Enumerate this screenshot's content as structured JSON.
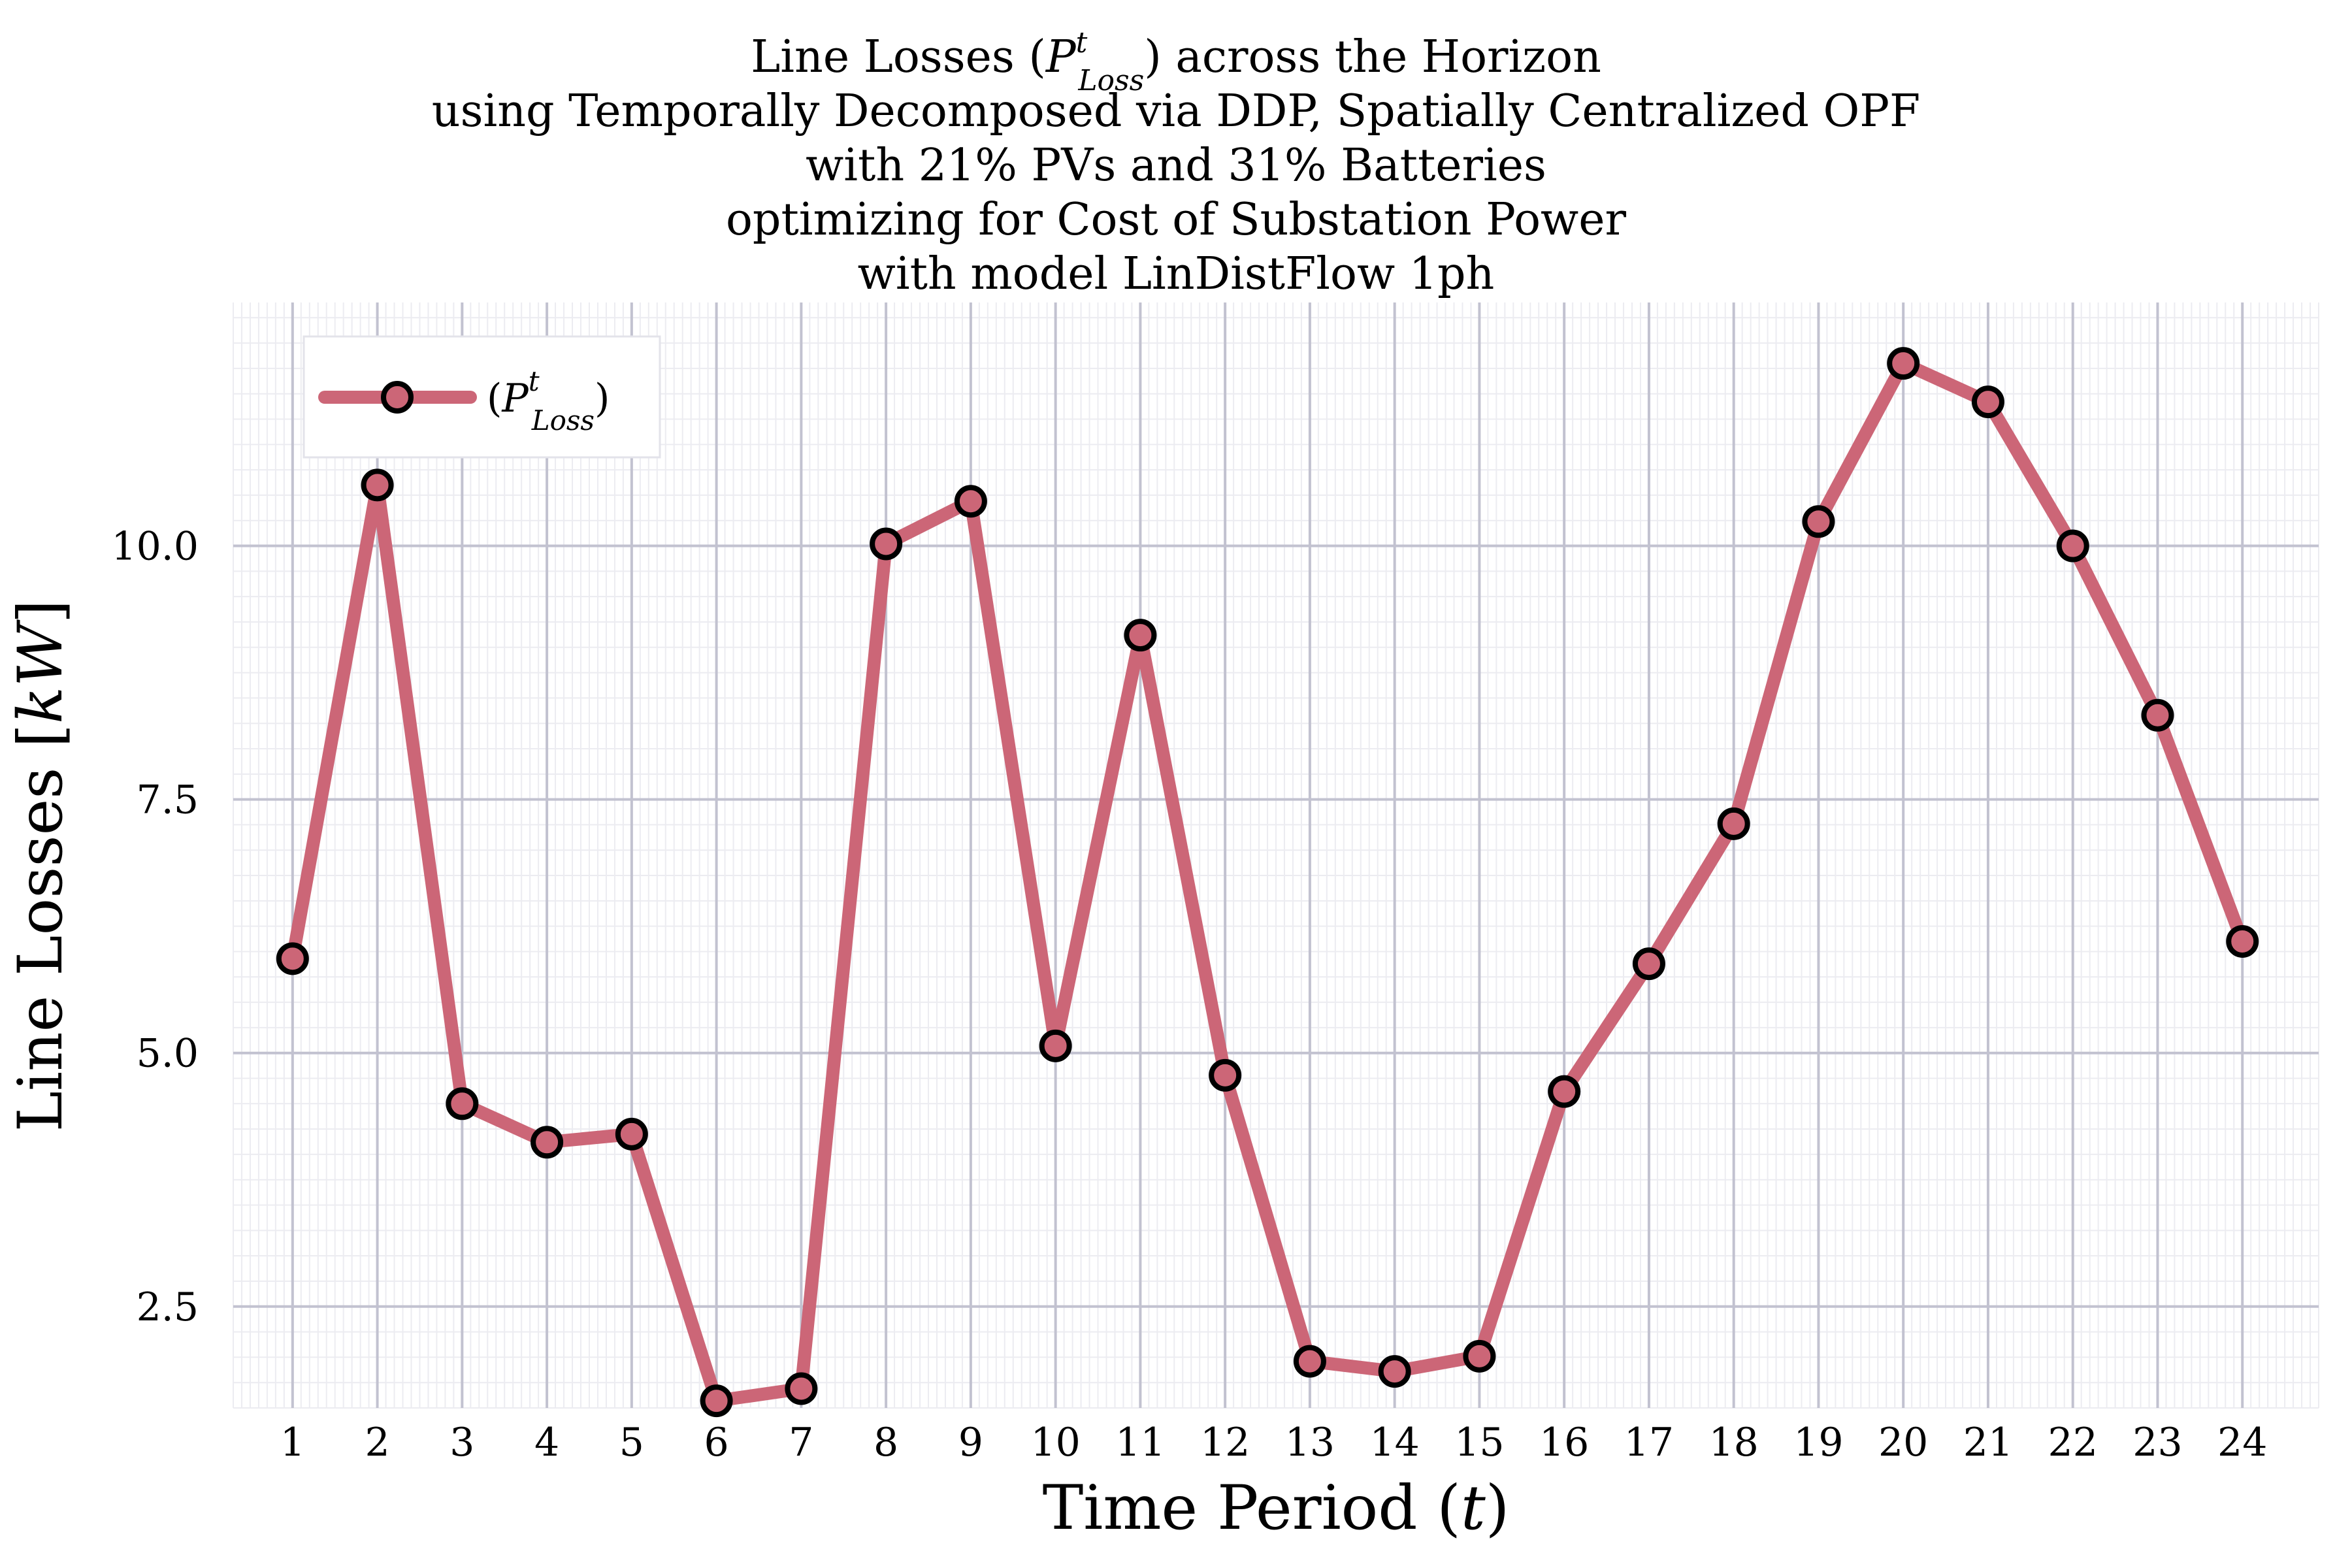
{
  "chart_data": {
    "type": "line",
    "title_lines": [
      "Line Losses (P_Loss^t) across the Horizon",
      "using Temporally Decomposed via DDP, Spatially Centralized OPF",
      "with 21% PVs and 31% Batteries",
      "optimizing for Cost of Substation Power",
      "with model LinDistFlow 1ph"
    ],
    "title_parts": {
      "line1_before": "Line Losses (",
      "line1_symbol": "P",
      "line1_sup": "t",
      "line1_sub": "Loss",
      "line1_after": ") across the Horizon",
      "line2": "using Temporally Decomposed via DDP, Spatially Centralized OPF",
      "line3": "with 21% PVs and 31% Batteries",
      "line4": "optimizing for Cost of Substation Power",
      "line5": "with model LinDistFlow 1ph"
    },
    "xlabel": "Time Period (t)",
    "xlabel_parts": {
      "text": "Time Period (",
      "var": "t",
      "close": ")"
    },
    "ylabel": "Line Losses [kW]",
    "ylabel_parts": {
      "text": "Line Losses [",
      "unit": "kW",
      "close": "]"
    },
    "x": [
      1,
      2,
      3,
      4,
      5,
      6,
      7,
      8,
      9,
      10,
      11,
      12,
      13,
      14,
      15,
      16,
      17,
      18,
      19,
      20,
      21,
      22,
      23,
      24
    ],
    "xlim": [
      0.3,
      24.9
    ],
    "ylim": [
      1.5,
      12.4
    ],
    "xticks": [
      1,
      2,
      3,
      4,
      5,
      6,
      7,
      8,
      9,
      10,
      11,
      12,
      13,
      14,
      15,
      16,
      17,
      18,
      19,
      20,
      21,
      22,
      23,
      24
    ],
    "yticks": [
      2.5,
      5.0,
      7.5,
      10.0
    ],
    "ytick_labels": [
      "2.5",
      "5.0",
      "7.5",
      "10.0"
    ],
    "series": [
      {
        "name": "(P_Loss^t)",
        "legend_parts": {
          "open": "(",
          "symbol": "P",
          "sup": "t",
          "sub": "Loss",
          "close": ")"
        },
        "color": "#cc6677",
        "marker_edge": "#000000",
        "values": [
          5.93,
          10.6,
          4.5,
          4.12,
          4.2,
          1.57,
          1.69,
          10.02,
          10.44,
          5.07,
          9.12,
          4.78,
          1.96,
          1.86,
          2.01,
          4.62,
          5.88,
          7.26,
          10.24,
          11.8,
          11.42,
          10.0,
          8.33,
          6.1
        ]
      }
    ],
    "grid": true,
    "minor_grid": true,
    "legend_position": "top-left",
    "colors": {
      "major_grid": "#c2c2d0",
      "minor_grid": "#ececf1",
      "line": "#cc6677"
    }
  }
}
